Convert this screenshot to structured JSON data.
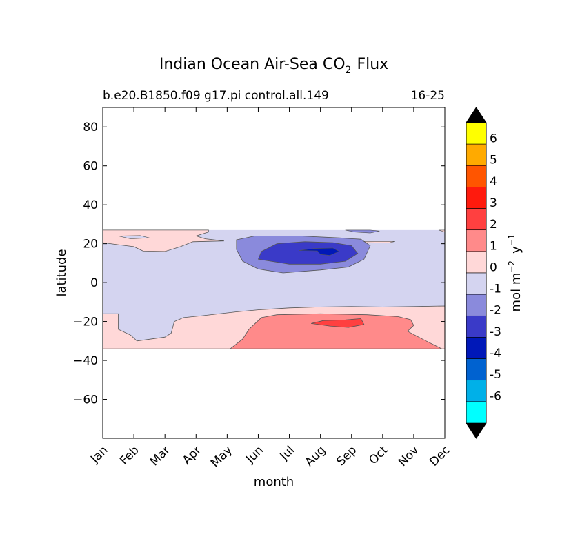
{
  "chart_data": {
    "type": "heatmap",
    "title_main": "Indian Ocean Air-Sea CO",
    "title_sub": "2",
    "title_end": "Flux",
    "subtitle_left": "b.e20.B1850.f09 g17.pi control.all.149",
    "subtitle_right": "16-25",
    "xlabel": "month",
    "ylabel": "latitude",
    "x_ticks": [
      "Jan",
      "Feb",
      "Mar",
      "Apr",
      "May",
      "Jun",
      "Jul",
      "Aug",
      "Sep",
      "Oct",
      "Nov",
      "Dec"
    ],
    "y_ticks": [
      80,
      60,
      40,
      20,
      0,
      -20,
      -40,
      -60
    ],
    "y_tick_labels": [
      "80",
      "60",
      "40",
      "20",
      "0",
      "−20",
      "−40",
      "−60"
    ],
    "xlim": [
      0,
      11
    ],
    "ylim": [
      -80,
      90
    ],
    "data_lat_range": [
      -34,
      27
    ],
    "colorbar_label_main": "mol m",
    "colorbar_label_sup1": "−2",
    "colorbar_label_mid": "y",
    "colorbar_label_sup2": "−1",
    "colorbar_levels": [
      6,
      5,
      4,
      3,
      2,
      1,
      0,
      -1,
      -2,
      -3,
      -4,
      -5,
      -6
    ],
    "colorbar_level_labels": [
      "6",
      "5",
      "4",
      "3",
      "2",
      "1",
      "0",
      "-1",
      "-2",
      "-3",
      "-4",
      "-5",
      "-6"
    ],
    "colorbar_colors": [
      "#ffff00",
      "#ffaa00",
      "#ff5500",
      "#ff1a0d",
      "#ff4040",
      "#ff8a8a",
      "#ffd8d8",
      "#d4d4f0",
      "#8a8adc",
      "#3a3ac8",
      "#0018b8",
      "#0062d0",
      "#00b0e8",
      "#00ffff"
    ],
    "regions": [
      {
        "name": "ocean-flux-background",
        "level": "-1 to 0",
        "color": "#d4d4f0"
      },
      {
        "name": "north-band-outgassing",
        "level": "0 to 1",
        "color": "#ffd8d8"
      },
      {
        "name": "south-band-outgassing",
        "level": "0 to 1",
        "color": "#ffd8d8"
      },
      {
        "name": "south-strong-outgassing",
        "level": "1 to 2",
        "color": "#ff8a8a"
      },
      {
        "name": "south-peak-outgassing",
        "level": "2 to 3",
        "color": "#ff4040"
      },
      {
        "name": "arabian-sea-uptake",
        "level": "-2 to -1",
        "color": "#8a8adc"
      },
      {
        "name": "arabian-sea-strong-uptake",
        "level": "-3 to -2",
        "color": "#3a3ac8"
      },
      {
        "name": "arabian-sea-peak-uptake",
        "level": "-4 to -3",
        "color": "#0018b8"
      }
    ]
  }
}
